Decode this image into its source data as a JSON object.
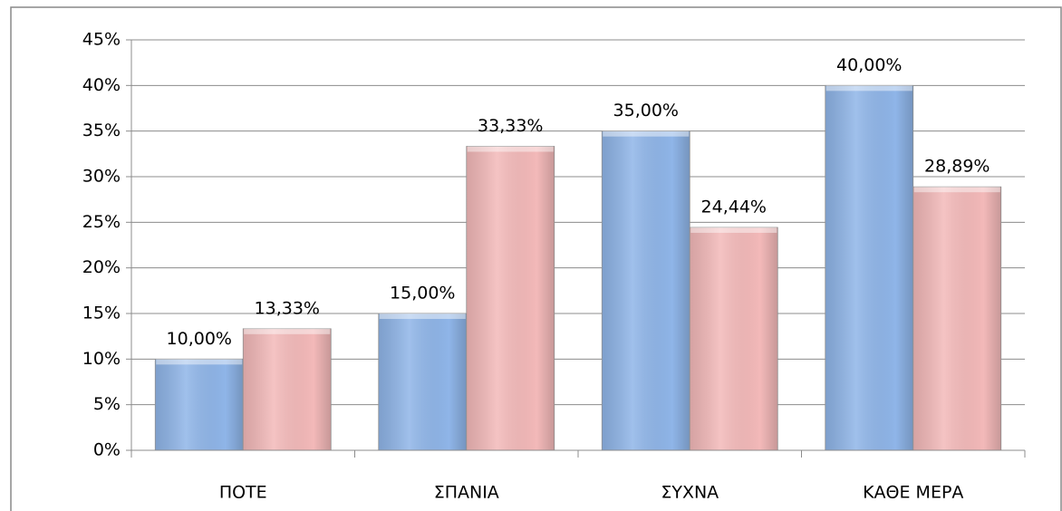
{
  "chart_data": {
    "type": "bar",
    "categories": [
      "ΠΟΤΕ",
      "ΣΠΑΝΙΑ",
      "ΣΥΧΝΑ",
      "ΚΑΘΕ ΜΕΡΑ"
    ],
    "series": [
      {
        "color": "#8fb5e8",
        "values": [
          10,
          15,
          35,
          40
        ],
        "value_labels": [
          "10,00%",
          "15,00%",
          "35,00%",
          "40,00%"
        ]
      },
      {
        "color": "#f3b9b9",
        "values": [
          13.33,
          33.33,
          24.44,
          28.89
        ],
        "value_labels": [
          "13,33%",
          "33,33%",
          "24,44%",
          "28,89%"
        ]
      }
    ],
    "ylim": [
      0,
      45
    ],
    "yticks": [
      {
        "value": 0,
        "label": "0%"
      },
      {
        "value": 5,
        "label": "5%"
      },
      {
        "value": 10,
        "label": "10%"
      },
      {
        "value": 15,
        "label": "15%"
      },
      {
        "value": 20,
        "label": "20%"
      },
      {
        "value": 25,
        "label": "25%"
      },
      {
        "value": 30,
        "label": "30%"
      },
      {
        "value": 35,
        "label": "35%"
      },
      {
        "value": 40,
        "label": "40%"
      },
      {
        "value": 45,
        "label": "45%"
      }
    ],
    "grid": true
  }
}
